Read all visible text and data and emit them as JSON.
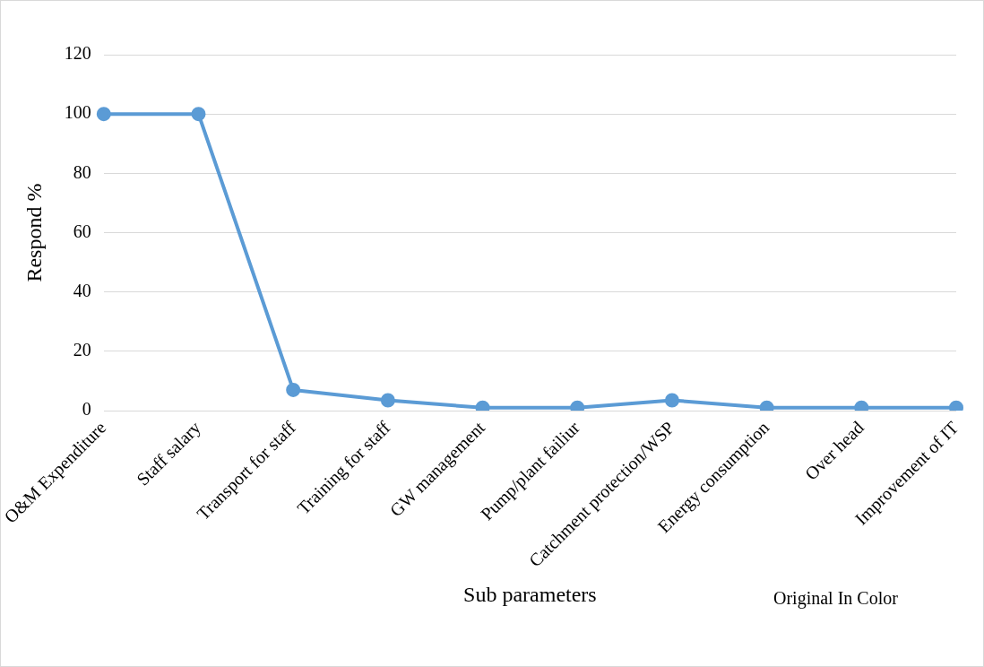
{
  "chart_data": {
    "type": "line",
    "xlabel": "Sub parameters",
    "ylabel": "Respond %",
    "categories": [
      "O&M Expenditure",
      "Staff salary",
      "Transport for staff",
      "Training for staff",
      "GW management",
      "Pump/plant failiur",
      "Catchment protection/WSP",
      "Energy consumption",
      "Over head",
      "Improvement of IT"
    ],
    "series": [
      {
        "color": "#5b9bd5",
        "values": [
          100,
          100,
          7,
          3.5,
          1,
          1,
          3.5,
          1,
          1,
          1
        ]
      }
    ],
    "ylim": [
      0,
      120
    ],
    "yticks": [
      0,
      20,
      40,
      60,
      80,
      100,
      120
    ],
    "grid": "y",
    "marker": "circle",
    "line_style": "solid",
    "legend": false,
    "annotations": [
      "Original In Color"
    ]
  }
}
